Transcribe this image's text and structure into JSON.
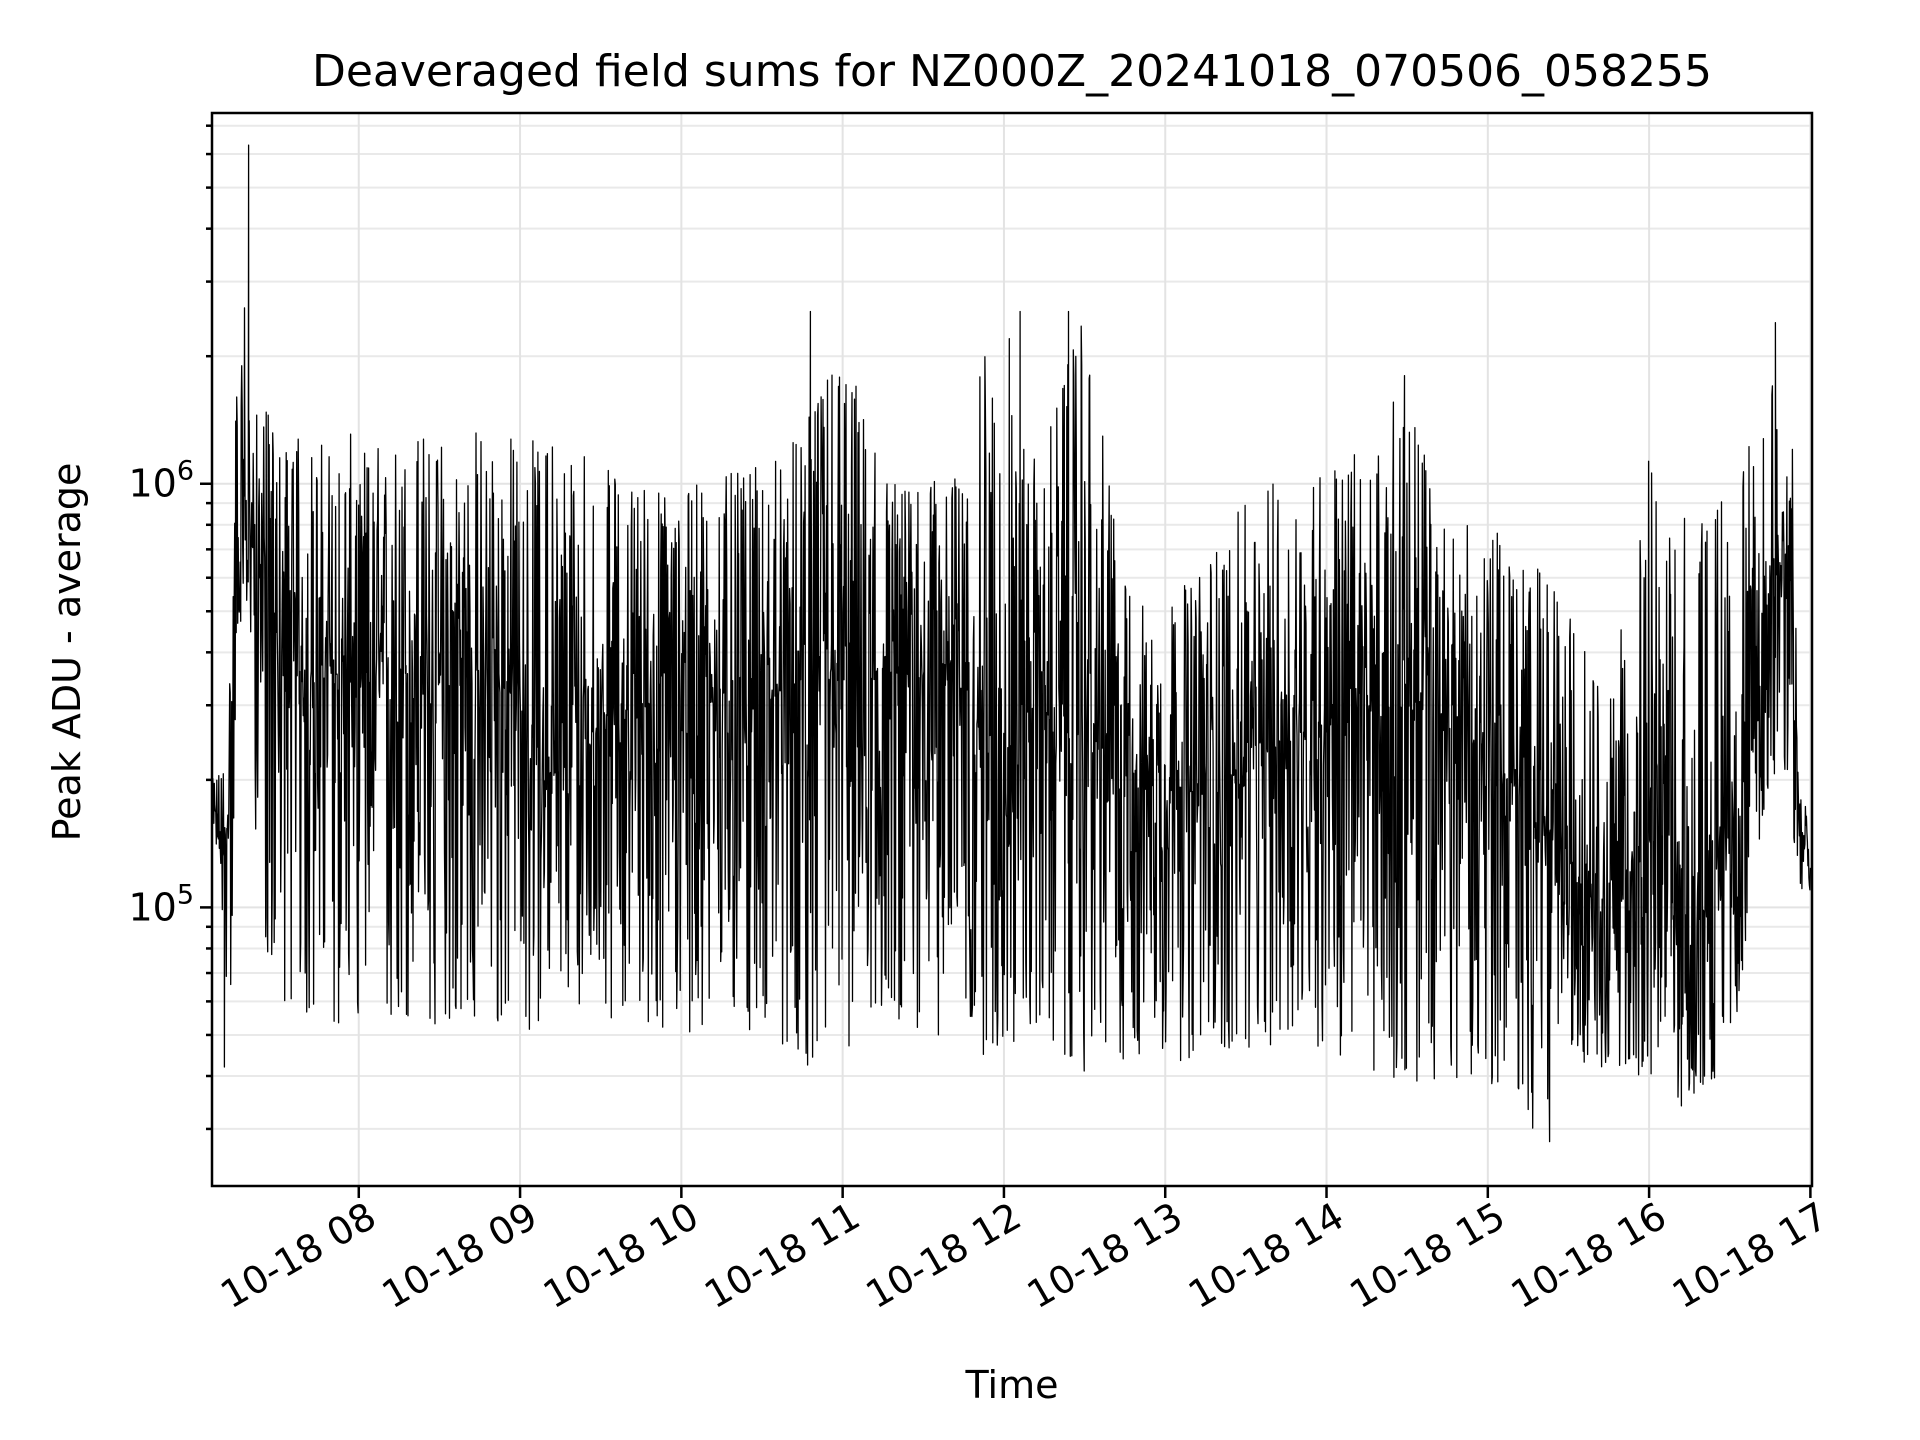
{
  "chart_data": {
    "type": "line",
    "title": "Deaveraged field sums for NZ000Z_20241018_070506_058255",
    "xlabel": "Time",
    "ylabel": "Peak ADU - average",
    "yscale": "log",
    "ylim": [
      22000,
      7500000
    ],
    "xlim": [
      "2024-10-18 07:05:24",
      "2024-10-18 17:00:36"
    ],
    "x_tick_labels": [
      "10-18 08",
      "10-18 09",
      "10-18 10",
      "10-18 11",
      "10-18 12",
      "10-18 13",
      "10-18 14",
      "10-18 15",
      "10-18 16",
      "10-18 17"
    ],
    "y_tick_labels": [
      {
        "value": 100000,
        "base": "10",
        "exp": "5"
      },
      {
        "value": 1000000,
        "base": "10",
        "exp": "6"
      }
    ],
    "grid": true,
    "line_color": "#000000",
    "series": [
      {
        "x": [
          "2024-10-18 07:05:30",
          "2024-10-18 07:10:00",
          "2024-10-18 07:12:00",
          "2024-10-18 07:15:00",
          "2024-10-18 07:17:00",
          "2024-10-18 07:20:00",
          "2024-10-18 07:22:00",
          "2024-10-18 07:25:00",
          "2024-10-18 07:30:00",
          "2024-10-18 07:40:00",
          "2024-10-18 07:50:00",
          "2024-10-18 08:00:00",
          "2024-10-18 08:10:00",
          "2024-10-18 08:20:00",
          "2024-10-18 08:30:00",
          "2024-10-18 08:40:00",
          "2024-10-18 08:50:00",
          "2024-10-18 09:00:00",
          "2024-10-18 09:10:00",
          "2024-10-18 09:20:00",
          "2024-10-18 09:30:00",
          "2024-10-18 09:45:00",
          "2024-10-18 10:00:00",
          "2024-10-18 10:15:00",
          "2024-10-18 10:30:00",
          "2024-10-18 10:45:00",
          "2024-10-18 11:00:00",
          "2024-10-18 11:15:00",
          "2024-10-18 11:30:00",
          "2024-10-18 11:45:00",
          "2024-10-18 11:55:00",
          "2024-10-18 12:10:00",
          "2024-10-18 12:30:00",
          "2024-10-18 12:45:00",
          "2024-10-18 13:00:00",
          "2024-10-18 13:15:00",
          "2024-10-18 13:30:00",
          "2024-10-18 13:45:00",
          "2024-10-18 14:00:00",
          "2024-10-18 14:15:00",
          "2024-10-18 14:30:00",
          "2024-10-18 14:45:00",
          "2024-10-18 15:00:00",
          "2024-10-18 15:15:00",
          "2024-10-18 15:30:00",
          "2024-10-18 15:45:00",
          "2024-10-18 16:00:00",
          "2024-10-18 16:15:00",
          "2024-10-18 16:30:00",
          "2024-10-18 16:40:00",
          "2024-10-18 16:45:00",
          "2024-10-18 16:50:00",
          "2024-10-18 16:53:00",
          "2024-10-18 16:56:00",
          "2024-10-18 16:58:00",
          "2024-10-18 17:00:00"
        ],
        "median": [
          180000,
          130000,
          190000,
          800000,
          700000,
          750000,
          680000,
          600000,
          380000,
          350000,
          360000,
          330000,
          340000,
          360000,
          330000,
          350000,
          360000,
          300000,
          200000,
          220000,
          280000,
          300000,
          310000,
          320000,
          310000,
          320000,
          330000,
          340000,
          360000,
          380000,
          200000,
          300000,
          250000,
          220000,
          200000,
          180000,
          220000,
          250000,
          270000,
          290000,
          300000,
          270000,
          230000,
          170000,
          120000,
          100000,
          150000,
          80000,
          150000,
          260000,
          500000,
          700000,
          700000,
          140000,
          150000,
          110000
        ],
        "upper": [
          200000,
          240000,
          400000,
          2600000,
          1700000,
          1800000,
          1500000,
          1500000,
          1400000,
          1300000,
          1350000,
          1300000,
          1300000,
          1400000,
          1400000,
          1450000,
          1400000,
          1350000,
          1300000,
          1200000,
          1100000,
          1100000,
          1000000,
          1050000,
          1100000,
          1300000,
          2500000,
          1000000,
          1000000,
          1100000,
          2500000,
          1100000,
          2500000,
          600000,
          500000,
          700000,
          900000,
          1100000,
          1200000,
          1200000,
          1800000,
          800000,
          800000,
          700000,
          500000,
          300000,
          1200000,
          800000,
          1100000,
          1300000,
          1700000,
          2400000,
          1500000,
          200000,
          180000,
          130000
        ],
        "lower": [
          170000,
          80000,
          42000,
          450000,
          420000,
          400000,
          120000,
          70000,
          60000,
          55000,
          48000,
          55000,
          52000,
          55000,
          52000,
          48000,
          48000,
          45000,
          58000,
          60000,
          55000,
          52000,
          50000,
          52000,
          50000,
          40000,
          42000,
          55000,
          50000,
          48000,
          42000,
          45000,
          40000,
          42000,
          42000,
          45000,
          44000,
          45000,
          45000,
          42000,
          38000,
          40000,
          38000,
          28000,
          45000,
          40000,
          38000,
          34000,
          40000,
          130000,
          200000,
          200000,
          150000,
          90000,
          140000,
          100000
        ],
        "spikes": [
          {
            "x": "2024-10-18 07:19:00",
            "y": 6300000
          },
          {
            "x": "2024-10-18 07:17:30",
            "y": 2600000
          },
          {
            "x": "2024-10-18 07:10:00",
            "y": 42000
          },
          {
            "x": "2024-10-18 10:48:00",
            "y": 2550000
          },
          {
            "x": "2024-10-18 12:02:00",
            "y": 2200000
          },
          {
            "x": "2024-10-18 12:06:00",
            "y": 2550000
          },
          {
            "x": "2024-10-18 12:24:00",
            "y": 2550000
          },
          {
            "x": "2024-10-18 14:29:00",
            "y": 1800000
          },
          {
            "x": "2024-10-18 15:23:00",
            "y": 28000
          },
          {
            "x": "2024-10-18 16:12:00",
            "y": 34000
          },
          {
            "x": "2024-10-18 16:47:00",
            "y": 2400000
          }
        ]
      }
    ]
  }
}
